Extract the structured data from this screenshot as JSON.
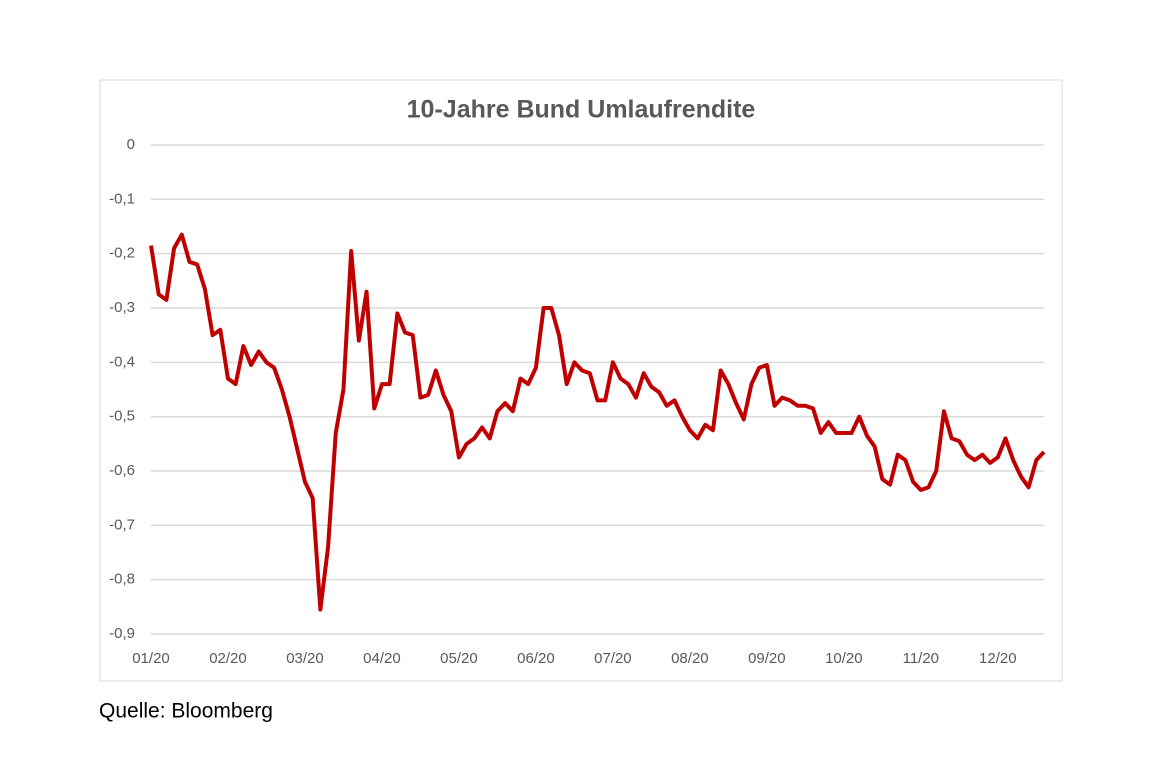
{
  "chart_data": {
    "type": "line",
    "title": "10-Jahre Bund Umlaufrendite",
    "source": "Quelle: Bloomberg",
    "categories": [
      "01/20",
      null,
      null,
      null,
      null,
      null,
      null,
      null,
      null,
      null,
      "02/20",
      null,
      null,
      null,
      null,
      null,
      null,
      null,
      null,
      null,
      "03/20",
      null,
      null,
      null,
      null,
      null,
      null,
      null,
      null,
      null,
      "04/20",
      null,
      null,
      null,
      null,
      null,
      null,
      null,
      null,
      null,
      "05/20",
      null,
      null,
      null,
      null,
      null,
      null,
      null,
      null,
      null,
      "06/20",
      null,
      null,
      null,
      null,
      null,
      null,
      null,
      null,
      null,
      "07/20",
      null,
      null,
      null,
      null,
      null,
      null,
      null,
      null,
      null,
      "08/20",
      null,
      null,
      null,
      null,
      null,
      null,
      null,
      null,
      null,
      "09/20",
      null,
      null,
      null,
      null,
      null,
      null,
      null,
      null,
      null,
      "10/20",
      null,
      null,
      null,
      null,
      null,
      null,
      null,
      null,
      null,
      "11/20",
      null,
      null,
      null,
      null,
      null,
      null,
      null,
      null,
      null,
      "12/20",
      null,
      null,
      null,
      null,
      null,
      null
    ],
    "values": [
      -0.185,
      -0.275,
      -0.285,
      -0.19,
      -0.165,
      -0.215,
      -0.22,
      -0.265,
      -0.35,
      -0.34,
      -0.43,
      -0.44,
      -0.37,
      -0.405,
      -0.38,
      -0.4,
      -0.41,
      -0.45,
      -0.5,
      -0.56,
      -0.62,
      -0.65,
      -0.855,
      -0.74,
      -0.53,
      -0.45,
      -0.195,
      -0.36,
      -0.27,
      -0.485,
      -0.44,
      -0.44,
      -0.31,
      -0.345,
      -0.35,
      -0.465,
      -0.46,
      -0.415,
      -0.46,
      -0.49,
      -0.575,
      -0.55,
      -0.54,
      -0.52,
      -0.54,
      -0.49,
      -0.475,
      -0.49,
      -0.43,
      -0.44,
      -0.41,
      -0.3,
      -0.3,
      -0.35,
      -0.44,
      -0.4,
      -0.415,
      -0.42,
      -0.47,
      -0.47,
      -0.4,
      -0.43,
      -0.44,
      -0.465,
      -0.42,
      -0.445,
      -0.455,
      -0.48,
      -0.47,
      -0.5,
      -0.525,
      -0.54,
      -0.515,
      -0.525,
      -0.415,
      -0.44,
      -0.475,
      -0.505,
      -0.44,
      -0.41,
      -0.405,
      -0.48,
      -0.465,
      -0.47,
      -0.48,
      -0.48,
      -0.485,
      -0.53,
      -0.51,
      -0.53,
      -0.53,
      -0.53,
      -0.5,
      -0.535,
      -0.555,
      -0.615,
      -0.625,
      -0.57,
      -0.58,
      -0.62,
      -0.635,
      -0.63,
      -0.6,
      -0.49,
      -0.54,
      -0.545,
      -0.57,
      -0.58,
      -0.57,
      -0.585,
      -0.575,
      -0.54,
      -0.58,
      -0.61,
      -0.63,
      -0.58,
      -0.565
    ],
    "color": "#c00000",
    "ylim": [
      -0.9,
      0
    ],
    "yticks": [
      {
        "value": -0.9,
        "label": "-0,9"
      },
      {
        "value": -0.8,
        "label": "-0,8"
      },
      {
        "value": -0.7,
        "label": "-0,7"
      },
      {
        "value": -0.6,
        "label": "-0,6"
      },
      {
        "value": -0.5,
        "label": "-0,5"
      },
      {
        "value": -0.4,
        "label": "-0,4"
      },
      {
        "value": -0.3,
        "label": "-0,3"
      },
      {
        "value": -0.2,
        "label": "-0,2"
      },
      {
        "value": -0.1,
        "label": "-0,1"
      },
      0
    ],
    "grid": true
  }
}
